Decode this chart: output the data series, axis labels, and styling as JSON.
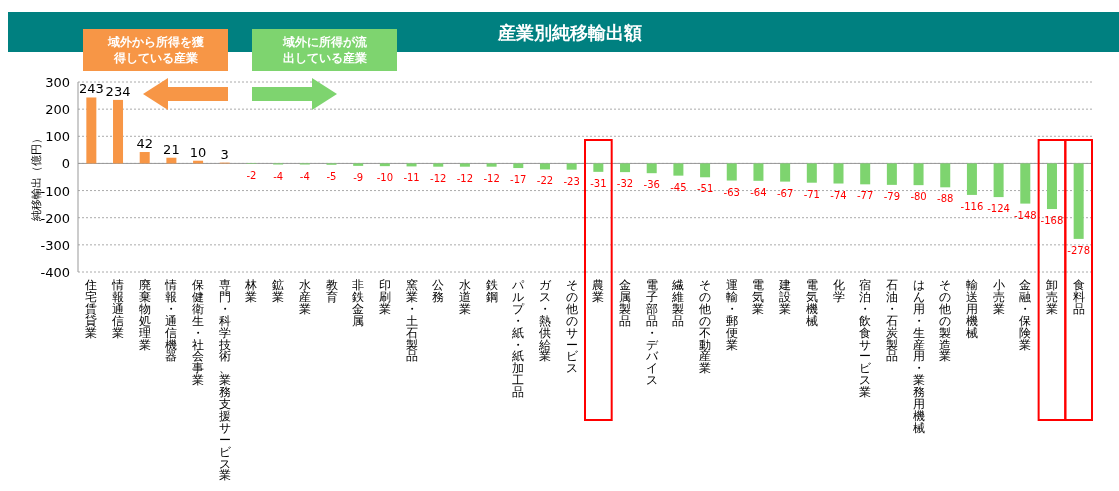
{
  "chart_data": {
    "type": "bar",
    "title": "産業別純移輸出額",
    "ylabel": "純移輸出（億円）",
    "categories": [
      "住宅賃貸業",
      "情報通信業",
      "廃棄物処理業",
      "情報・通信機器",
      "保健衛生・社会事業",
      "専門・科学技術、業務支援サービス業",
      "林業",
      "鉱業",
      "水産業",
      "教育",
      "非鉄金属",
      "印刷業",
      "窯業・土石製品",
      "公務",
      "水道業",
      "鉄鋼",
      "パルプ・紙・紙加工品",
      "ガス・熱供給業",
      "その他のサービス",
      "農業",
      "金属製品",
      "電子部品・デバイス",
      "繊維製品",
      "その他の不動産業",
      "運輸・郵便業",
      "電気業",
      "建設業",
      "電気機械",
      "化学",
      "宿泊・飲食サービス業",
      "石油・石炭製品",
      "はん用・生産用・業務用機械",
      "その他の製造業",
      "輸送用機械",
      "小売業",
      "金融・保険業",
      "卸売業",
      "食料品"
    ],
    "values": [
      243,
      234,
      42,
      21,
      10,
      3,
      -2,
      -4,
      -4,
      -5,
      -9,
      -10,
      -11,
      -12,
      -12,
      -12,
      -17,
      -22,
      -23,
      -31,
      -32,
      -36,
      -45,
      -51,
      -63,
      -64,
      -67,
      -71,
      -74,
      -77,
      -79,
      -80,
      -88,
      -116,
      -124,
      -148,
      -168,
      -278
    ],
    "colors": [
      "#f79646",
      "#f79646",
      "#f79646",
      "#f79646",
      "#f79646",
      "#f79646",
      "#7ed46f",
      "#7ed46f",
      "#7ed46f",
      "#7ed46f",
      "#7ed46f",
      "#7ed46f",
      "#7ed46f",
      "#7ed46f",
      "#7ed46f",
      "#7ed46f",
      "#7ed46f",
      "#7ed46f",
      "#7ed46f",
      "#7ed46f",
      "#7ed46f",
      "#7ed46f",
      "#7ed46f",
      "#7ed46f",
      "#7ed46f",
      "#7ed46f",
      "#7ed46f",
      "#7ed46f",
      "#7ed46f",
      "#7ed46f",
      "#7ed46f",
      "#7ed46f",
      "#7ed46f",
      "#7ed46f",
      "#7ed46f",
      "#7ed46f",
      "#7ed46f",
      "#7ed46f"
    ],
    "ylim": [
      -400,
      300
    ],
    "yticks": [
      -400,
      -300,
      -200,
      -100,
      0,
      100,
      200,
      300
    ],
    "grid": "y",
    "data_labels": true,
    "annotations": [
      "域外から所得を獲得している産業",
      "域外に所得が流出している産業"
    ]
  }
}
